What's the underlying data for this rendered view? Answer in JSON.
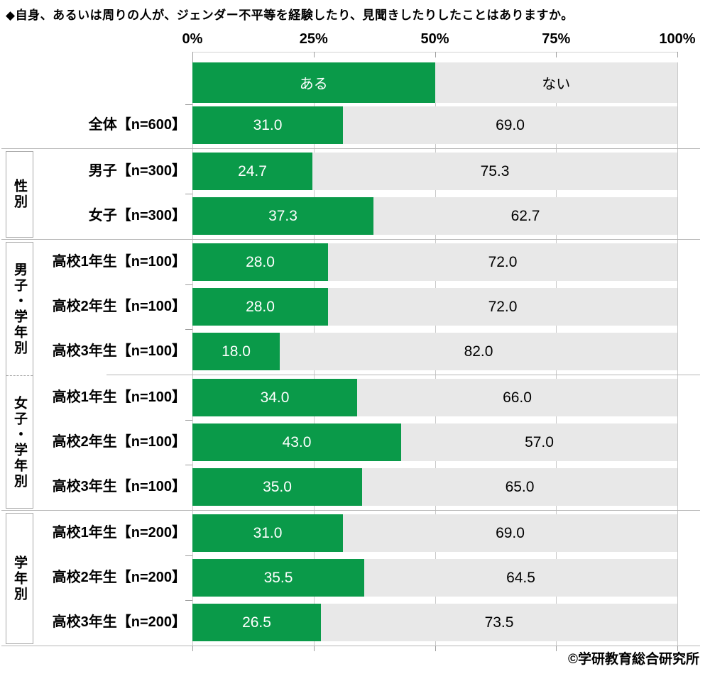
{
  "title": "◆自身、あるいは周りの人が、ジェンダー不平等を経験したり、見聞きしたりしたことはありますか。",
  "copyright": "©学研教育総合研究所",
  "colors": {
    "aru": "#0a9a49",
    "nai": "#e8e8e8",
    "grid": "#c9c9c9",
    "sep": "#b7b7b7",
    "axis": "#d2d2d2",
    "box": "#a8a8a8",
    "tick": "#9e9e9e",
    "value_on_aru": "#ffffff",
    "value_on_nai": "#000000"
  },
  "chart_data": {
    "type": "bar",
    "orientation": "horizontal",
    "stacked": true,
    "title": "自身、あるいは周りの人が、ジェンダー不平等を経験したり、見聞きしたりしたことはありますか。",
    "x_ticks": [
      "0%",
      "25%",
      "50%",
      "75%",
      "100%"
    ],
    "value_range": [
      0,
      100
    ],
    "grid": true,
    "legend": [
      "ある",
      "ない"
    ],
    "categories": [
      "全体【n=600】",
      "男子【n=300】",
      "女子【n=300】",
      "高校1年生【n=100】",
      "高校2年生【n=100】",
      "高校3年生【n=100】",
      "高校1年生【n=100】",
      "高校2年生【n=100】",
      "高校3年生【n=100】",
      "高校1年生【n=200】",
      "高校2年生【n=200】",
      "高校3年生【n=200】"
    ],
    "groups": [
      {
        "key": "overall",
        "label": "",
        "row_indices": [
          0
        ]
      },
      {
        "key": "gender",
        "label": "性別",
        "row_indices": [
          1,
          2
        ]
      },
      {
        "key": "boys-by-grade",
        "label": "男子・学年別",
        "row_indices": [
          3,
          4,
          5
        ]
      },
      {
        "key": "girls-by-grade",
        "label": "女子・学年別",
        "row_indices": [
          6,
          7,
          8
        ]
      },
      {
        "key": "by-grade",
        "label": "学年別",
        "row_indices": [
          9,
          10,
          11
        ]
      }
    ],
    "series": [
      {
        "name": "ある",
        "values": [
          31.0,
          24.7,
          37.3,
          28.0,
          28.0,
          18.0,
          34.0,
          43.0,
          35.0,
          31.0,
          35.5,
          26.5
        ]
      },
      {
        "name": "ない",
        "values": [
          69.0,
          75.3,
          62.7,
          72.0,
          72.0,
          82.0,
          66.0,
          57.0,
          65.0,
          69.0,
          64.5,
          73.5
        ]
      }
    ],
    "value_labels": {
      "aru": [
        "31.0",
        "24.7",
        "37.3",
        "28.0",
        "28.0",
        "18.0",
        "34.0",
        "43.0",
        "35.0",
        "31.0",
        "35.5",
        "26.5"
      ],
      "nai": [
        "69.0",
        "75.3",
        "62.7",
        "72.0",
        "72.0",
        "82.0",
        "66.0",
        "57.0",
        "65.0",
        "69.0",
        "64.5",
        "73.5"
      ]
    }
  }
}
